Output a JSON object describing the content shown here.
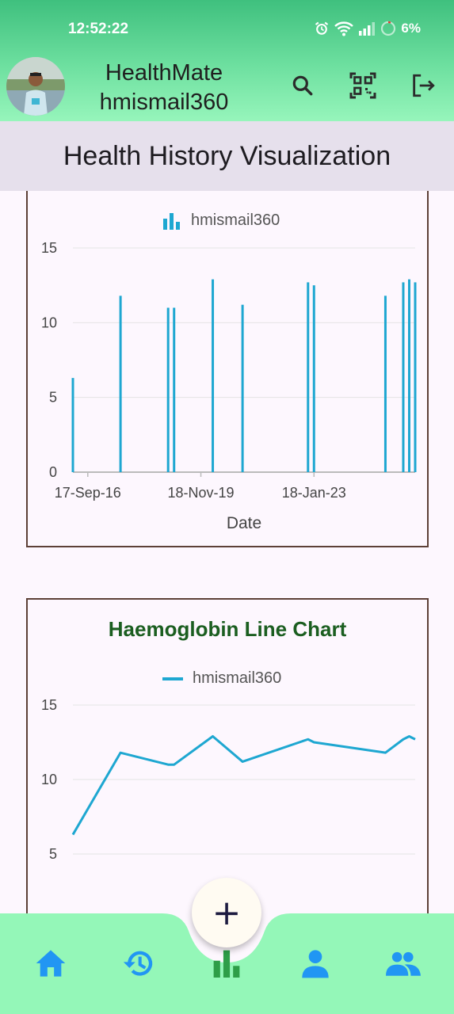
{
  "status_bar": {
    "time": "12:52:22",
    "battery": "6%"
  },
  "header": {
    "app_name": "HealthMate",
    "username": "hmismail360"
  },
  "banner": {
    "title": "Health History Visualization"
  },
  "bar_card": {
    "legend": "hmismail360",
    "x_axis_title": "Date"
  },
  "line_card": {
    "title": "Haemoglobin Line Chart",
    "legend": "hmismail360"
  },
  "fab": {
    "label": "+"
  },
  "nav": [
    "home-icon",
    "history-icon",
    "bar-chart-icon",
    "person-icon",
    "group-icon"
  ],
  "colors": {
    "series": "#1ea7d1",
    "title_green": "#1b5e20",
    "nav_blue": "#2196f3",
    "nav_green": "#2e9e48"
  },
  "chart_data": [
    {
      "type": "bar",
      "legend": "hmismail360",
      "xlabel": "Date",
      "ylabel": "",
      "ylim": [
        0,
        15
      ],
      "yticks": [
        0,
        5,
        10,
        15
      ],
      "xticks": [
        "17-Sep-16",
        "18-Nov-19",
        "18-Jan-23"
      ],
      "x": [
        "2016-04",
        "2017-08",
        "2018-12",
        "2019-02",
        "2020-03",
        "2021-01",
        "2022-11",
        "2023-01",
        "2025-01",
        "2025-07",
        "2025-09",
        "2025-11"
      ],
      "values": [
        6.3,
        11.8,
        11.0,
        11.0,
        12.9,
        11.2,
        12.7,
        12.5,
        11.8,
        12.7,
        12.9,
        12.7
      ]
    },
    {
      "type": "line",
      "title": "Haemoglobin Line Chart",
      "legend": "hmismail360",
      "ylim": [
        5,
        15
      ],
      "yticks": [
        5,
        10,
        15
      ],
      "x": [
        "2016-04",
        "2017-08",
        "2018-12",
        "2019-02",
        "2020-03",
        "2021-01",
        "2022-11",
        "2023-01",
        "2025-01",
        "2025-07",
        "2025-09",
        "2025-11"
      ],
      "values": [
        6.3,
        11.8,
        11.0,
        11.0,
        12.9,
        11.2,
        12.7,
        12.5,
        11.8,
        12.7,
        12.9,
        12.7
      ]
    }
  ]
}
